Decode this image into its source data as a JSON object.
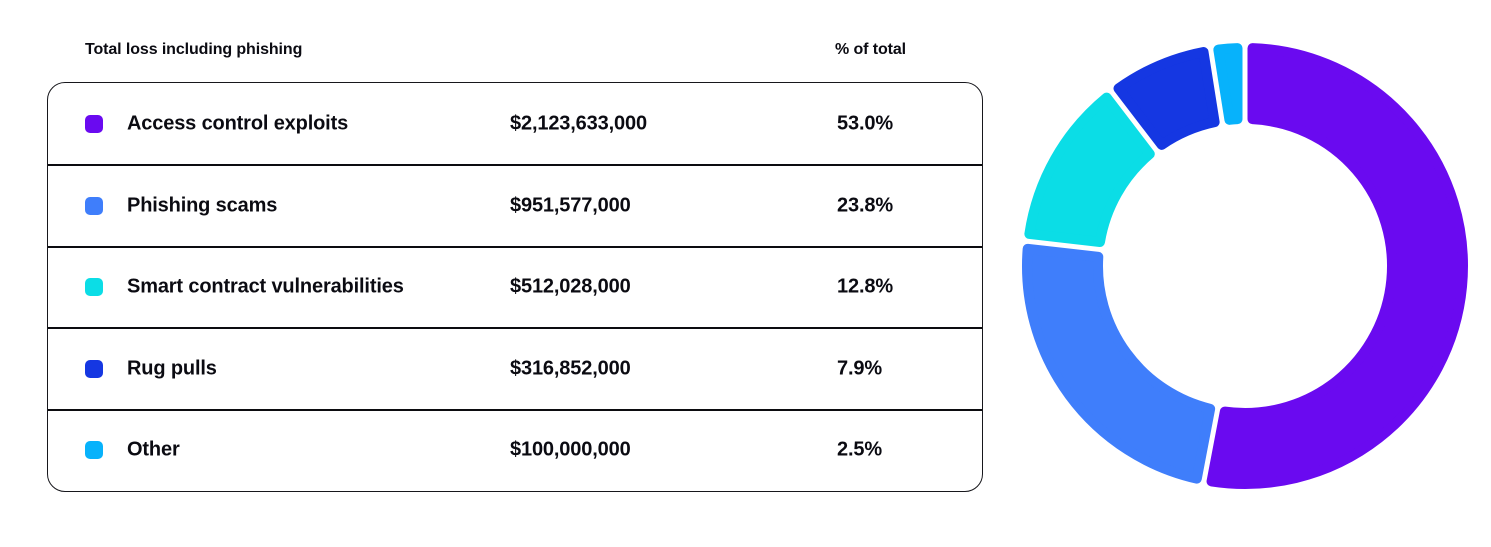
{
  "panel": {
    "background": "#ffffff",
    "text_color": "#0b0b12"
  },
  "table": {
    "header_left": "Total loss including phishing",
    "header_right": "% of total",
    "rows": [
      {
        "label": "Access control exploits",
        "amount": "$2,123,633,000",
        "percent": "53.0%",
        "color": "#6A0AF0"
      },
      {
        "label": "Phishing scams",
        "amount": "$951,577,000",
        "percent": "23.8%",
        "color": "#3F7EFB"
      },
      {
        "label": "Smart contract vulnerabilities",
        "amount": "$512,028,000",
        "percent": "12.8%",
        "color": "#0BDDE6"
      },
      {
        "label": "Rug pulls",
        "amount": "$316,852,000",
        "percent": "7.9%",
        "color": "#1537E2"
      },
      {
        "label": "Other",
        "amount": "$100,000,000",
        "percent": "2.5%",
        "color": "#07B2FB"
      }
    ]
  },
  "chart_data": {
    "type": "pie",
    "subtype": "donut",
    "title": "Total loss including phishing",
    "categories": [
      "Access control exploits",
      "Phishing scams",
      "Smart contract vulnerabilities",
      "Rug pulls",
      "Other"
    ],
    "values": [
      2123633000,
      951577000,
      512028000,
      316852000,
      100000000
    ],
    "percents": [
      53.0,
      23.8,
      12.8,
      7.9,
      2.5
    ],
    "colors": [
      "#6A0AF0",
      "#3F7EFB",
      "#0BDDE6",
      "#1537E2",
      "#07B2FB"
    ],
    "start_angle_deg": 0,
    "direction": "clockwise",
    "inner_radius_ratio": 0.64,
    "segment_gap_color": "#ffffff",
    "legend_position": "table-left"
  }
}
